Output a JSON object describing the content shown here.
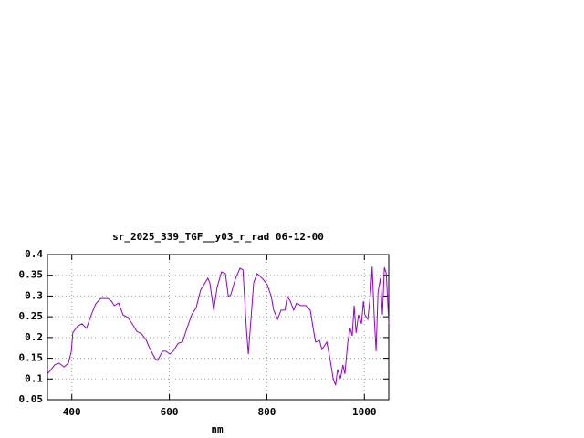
{
  "chart_data": {
    "type": "line",
    "title": "sr_2025_339_TGF__y03_r_rad 06-12-00",
    "x_label": "nm",
    "x": [
      350,
      365,
      374,
      384,
      393,
      399,
      402,
      412,
      421,
      430,
      440,
      449,
      459,
      474,
      481,
      487,
      496,
      505,
      515,
      524,
      533,
      543,
      552,
      561,
      571,
      576,
      586,
      593,
      601,
      608,
      618,
      627,
      636,
      646,
      655,
      664,
      679,
      683,
      691,
      698,
      707,
      715,
      721,
      726,
      736,
      745,
      751,
      758,
      762,
      766,
      773,
      780,
      792,
      801,
      809,
      814,
      822,
      829,
      837,
      842,
      848,
      855,
      861,
      870,
      880,
      889,
      895,
      900,
      908,
      913,
      923,
      930,
      936,
      941,
      945,
      951,
      956,
      960,
      966,
      971,
      975,
      979,
      983,
      988,
      994,
      998,
      1001,
      1007,
      1013,
      1016,
      1020,
      1024,
      1028,
      1033,
      1037,
      1041,
      1045,
      1050
    ],
    "values": [
      0.112,
      0.134,
      0.138,
      0.129,
      0.138,
      0.167,
      0.211,
      0.228,
      0.233,
      0.222,
      0.255,
      0.281,
      0.294,
      0.294,
      0.288,
      0.277,
      0.283,
      0.255,
      0.248,
      0.233,
      0.215,
      0.209,
      0.195,
      0.171,
      0.149,
      0.145,
      0.167,
      0.167,
      0.16,
      0.167,
      0.186,
      0.189,
      0.222,
      0.255,
      0.272,
      0.314,
      0.343,
      0.332,
      0.266,
      0.321,
      0.358,
      0.354,
      0.299,
      0.303,
      0.343,
      0.367,
      0.363,
      0.222,
      0.16,
      0.222,
      0.332,
      0.354,
      0.341,
      0.327,
      0.299,
      0.266,
      0.244,
      0.266,
      0.266,
      0.299,
      0.288,
      0.266,
      0.283,
      0.277,
      0.277,
      0.266,
      0.222,
      0.189,
      0.193,
      0.171,
      0.189,
      0.145,
      0.101,
      0.085,
      0.123,
      0.101,
      0.134,
      0.112,
      0.189,
      0.222,
      0.204,
      0.277,
      0.211,
      0.255,
      0.233,
      0.288,
      0.255,
      0.244,
      0.31,
      0.371,
      0.255,
      0.167,
      0.31,
      0.343,
      0.255,
      0.369,
      0.354,
      0.233
    ],
    "color": "#9400d3",
    "xlim": [
      350,
      1050
    ],
    "xticks": [
      400,
      600,
      800,
      1000
    ],
    "ylim": [
      0.05,
      0.4
    ],
    "yticks": [
      0.05,
      0.1,
      0.15,
      0.2,
      0.25,
      0.3,
      0.35,
      0.4
    ],
    "grid": true
  }
}
